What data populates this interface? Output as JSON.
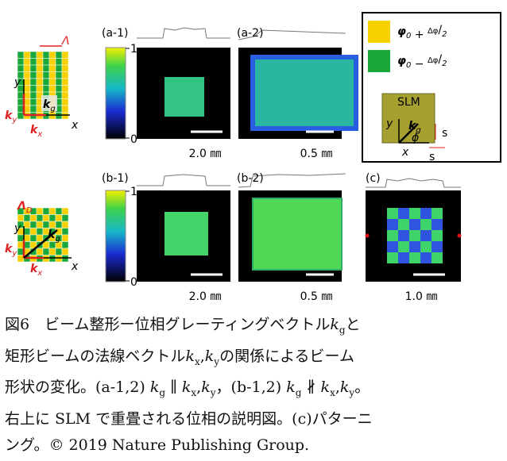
{
  "figure": {
    "panel_labels": [
      "(a-1)",
      "(a-2)",
      "(b-1)",
      "(b-2)",
      "(c)"
    ],
    "colorbars": [
      {
        "max": "1",
        "min": "0"
      },
      {
        "max": "1",
        "min": "0"
      }
    ],
    "scale_bars": [
      "2.0 ㎜",
      "0.5 ㎜",
      "2.0 ㎜",
      "0.5 ㎜",
      "1.0 ㎜"
    ],
    "diagram_a": {
      "period": [
        "Λ"
      ],
      "y": [
        "y"
      ],
      "x": [
        "x"
      ],
      "ky": [
        {
          "i": "k",
          "sub": "y"
        }
      ],
      "kx": [
        {
          "i": "k",
          "sub": "x"
        }
      ],
      "kg": [
        {
          "i": "k",
          "sub": "g"
        }
      ]
    },
    "diagram_b": {
      "period": [
        {
          "i": "Λ",
          "sub": "D"
        }
      ],
      "y": [
        "y"
      ],
      "x": [
        "x"
      ],
      "ky": [
        {
          "i": "k",
          "sub": "y"
        }
      ],
      "kx": [
        {
          "i": "k",
          "sub": "x"
        }
      ],
      "kg": [
        {
          "i": "k",
          "sub": "g"
        }
      ]
    },
    "legend": {
      "plus": [
        {
          "i": "φ",
          "sub": "0"
        },
        " + ",
        {
          "sup": "Δφ"
        },
        "/",
        {
          "sub": "2"
        }
      ],
      "minus": [
        {
          "i": "φ",
          "sub": "0"
        },
        " − ",
        {
          "sup": "Δφ"
        },
        "/",
        {
          "sub": "2"
        }
      ],
      "slm": [
        "SLM"
      ],
      "kg": [
        {
          "i": "k",
          "sub": "g"
        }
      ],
      "y": [
        "y"
      ],
      "x": [
        "x"
      ],
      "phi": [
        "ϕ"
      ],
      "s1": [
        "s"
      ],
      "s2": [
        "s"
      ]
    }
  },
  "caption": {
    "lines": [
      [
        "図6　ビーム整形ー位相グレーティングベクトル",
        {
          "i": "k",
          "sub": "g"
        },
        "と"
      ],
      [
        "矩形ビームの法線ベクトル",
        {
          "i": "k",
          "sub": "x"
        },
        ",",
        {
          "i": "k",
          "sub": "y"
        },
        "の関係によるビーム"
      ],
      [
        "形状の変化。(a-1,2) ",
        {
          "i": "k",
          "sub": "g"
        },
        " ∥ ",
        {
          "i": "k",
          "sub": "x"
        },
        ",",
        {
          "i": "k",
          "sub": "y"
        },
        "，(b-1,2) ",
        {
          "i": "k",
          "sub": "g"
        },
        " ∦ ",
        {
          "i": "k",
          "sub": "x"
        },
        ",",
        {
          "i": "k",
          "sub": "y"
        },
        "。"
      ],
      [
        "右上に SLM で重畳される位相の説明図。(c)パターニ"
      ],
      [
        "ング。© 2019 Nature Publishing Group."
      ]
    ]
  }
}
